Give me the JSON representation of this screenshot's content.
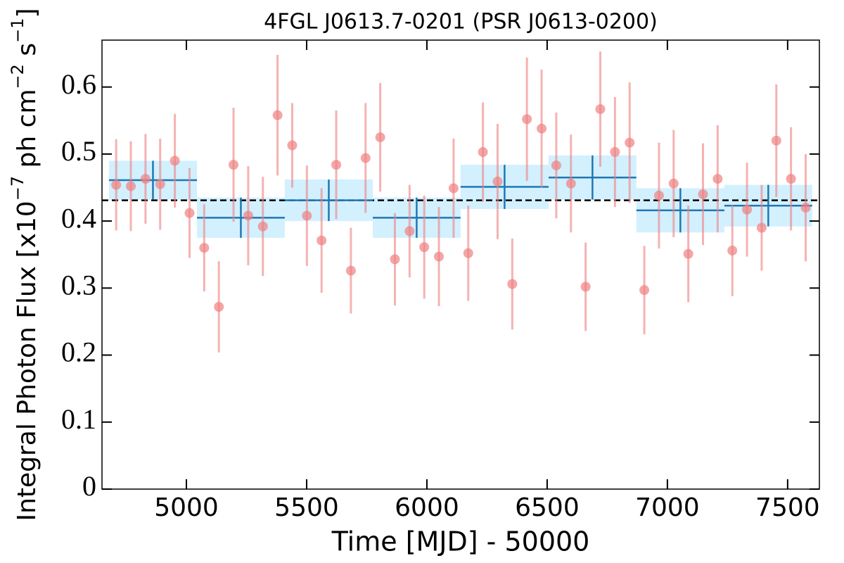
{
  "chart_data": {
    "type": "scatter",
    "title": "4FGL J0613.7-0201 (PSR J0613-0200)",
    "xlabel": "Time [MJD] - 50000",
    "ylabel_parts": [
      "Integral Photon Flux [x10",
      "−7",
      " ph cm",
      "−2",
      " s",
      "−1",
      "]"
    ],
    "xlim": [
      4649,
      7632
    ],
    "ylim": [
      0,
      0.67
    ],
    "xticks": [
      5000,
      5500,
      6000,
      6500,
      7000,
      7500
    ],
    "yticks": [
      0,
      0.1,
      0.2,
      0.3,
      0.4,
      0.5,
      0.6
    ],
    "series": [
      {
        "color": "#f08080",
        "x": [
          4708,
          4769,
          4830,
          4891,
          4952,
          5013,
          5074,
          5135,
          5196,
          5257,
          5318,
          5379,
          5440,
          5501,
          5562,
          5623,
          5684,
          5745,
          5806,
          5867,
          5928,
          5989,
          6050,
          6111,
          6172,
          6233,
          6294,
          6355,
          6416,
          6477,
          6538,
          6599,
          6660,
          6721,
          6782,
          6843,
          6904,
          6965,
          7026,
          7087,
          7148,
          7209,
          7270,
          7331,
          7392,
          7453,
          7514,
          7575
        ],
        "values": [
          0.454,
          0.452,
          0.463,
          0.455,
          0.49,
          0.412,
          0.36,
          0.272,
          0.484,
          0.408,
          0.392,
          0.558,
          0.513,
          0.408,
          0.371,
          0.484,
          0.326,
          0.494,
          0.525,
          0.343,
          0.385,
          0.361,
          0.347,
          0.449,
          0.352,
          0.503,
          0.459,
          0.306,
          0.552,
          0.538,
          0.483,
          0.456,
          0.302,
          0.567,
          0.503,
          0.517,
          0.297,
          0.438,
          0.456,
          0.351,
          0.44,
          0.463,
          0.356,
          0.417,
          0.39,
          0.52,
          0.463,
          0.42
        ],
        "errors": [
          0.068,
          0.067,
          0.067,
          0.068,
          0.07,
          0.067,
          0.065,
          0.068,
          0.085,
          0.074,
          0.074,
          0.09,
          0.063,
          0.075,
          0.078,
          0.081,
          0.064,
          0.082,
          0.081,
          0.069,
          0.069,
          0.077,
          0.074,
          0.074,
          0.071,
          0.074,
          0.086,
          0.068,
          0.092,
          0.088,
          0.079,
          0.073,
          0.066,
          0.086,
          0.082,
          0.09,
          0.066,
          0.079,
          0.08,
          0.072,
          0.076,
          0.08,
          0.068,
          0.07,
          0.064,
          0.084,
          0.077,
          0.08
        ]
      }
    ],
    "binned": {
      "color": "#1f77b4",
      "box_color": "#cdeefe",
      "bins": [
        4678,
        5044,
        5409,
        5775,
        6140,
        6506,
        6871,
        7237,
        7602
      ],
      "values": [
        0.461,
        0.405,
        0.431,
        0.405,
        0.451,
        0.465,
        0.416,
        0.423
      ],
      "errors": [
        0.029,
        0.03,
        0.031,
        0.03,
        0.033,
        0.033,
        0.033,
        0.031
      ]
    },
    "mean": 0.431
  }
}
